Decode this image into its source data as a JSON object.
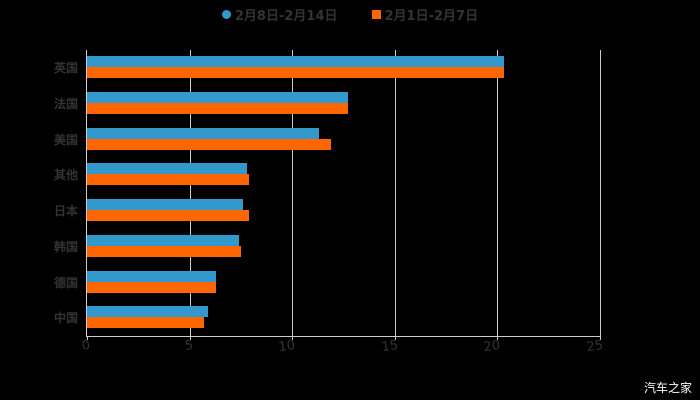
{
  "chart_data": {
    "type": "bar",
    "orientation": "horizontal",
    "title": "",
    "xlabel": "",
    "ylabel": "",
    "xlim": [
      0,
      25
    ],
    "x_ticks": [
      "0",
      "5",
      "10",
      "15",
      "20",
      "25"
    ],
    "grid": true,
    "legend_position": "top",
    "categories": [
      "英国",
      "法国",
      "美国",
      "其他",
      "日本",
      "韩国",
      "德国",
      "中国"
    ],
    "series": [
      {
        "name": "2月8日-2月14日",
        "color": "#3399cc",
        "values": [
          20.3,
          12.7,
          11.3,
          7.8,
          7.6,
          7.4,
          6.3,
          5.9
        ]
      },
      {
        "name": "2月1日-2月7日",
        "color": "#ff6600",
        "values": [
          20.3,
          12.7,
          11.9,
          7.9,
          7.9,
          7.5,
          6.3,
          5.7
        ]
      }
    ]
  },
  "legend": {
    "items": [
      {
        "label": "2月8日-2月14日",
        "color": "#3399cc",
        "shape": "circle"
      },
      {
        "label": "2月1日-2月7日",
        "color": "#ff6600",
        "shape": "square"
      }
    ]
  },
  "watermark": "汽车之家"
}
